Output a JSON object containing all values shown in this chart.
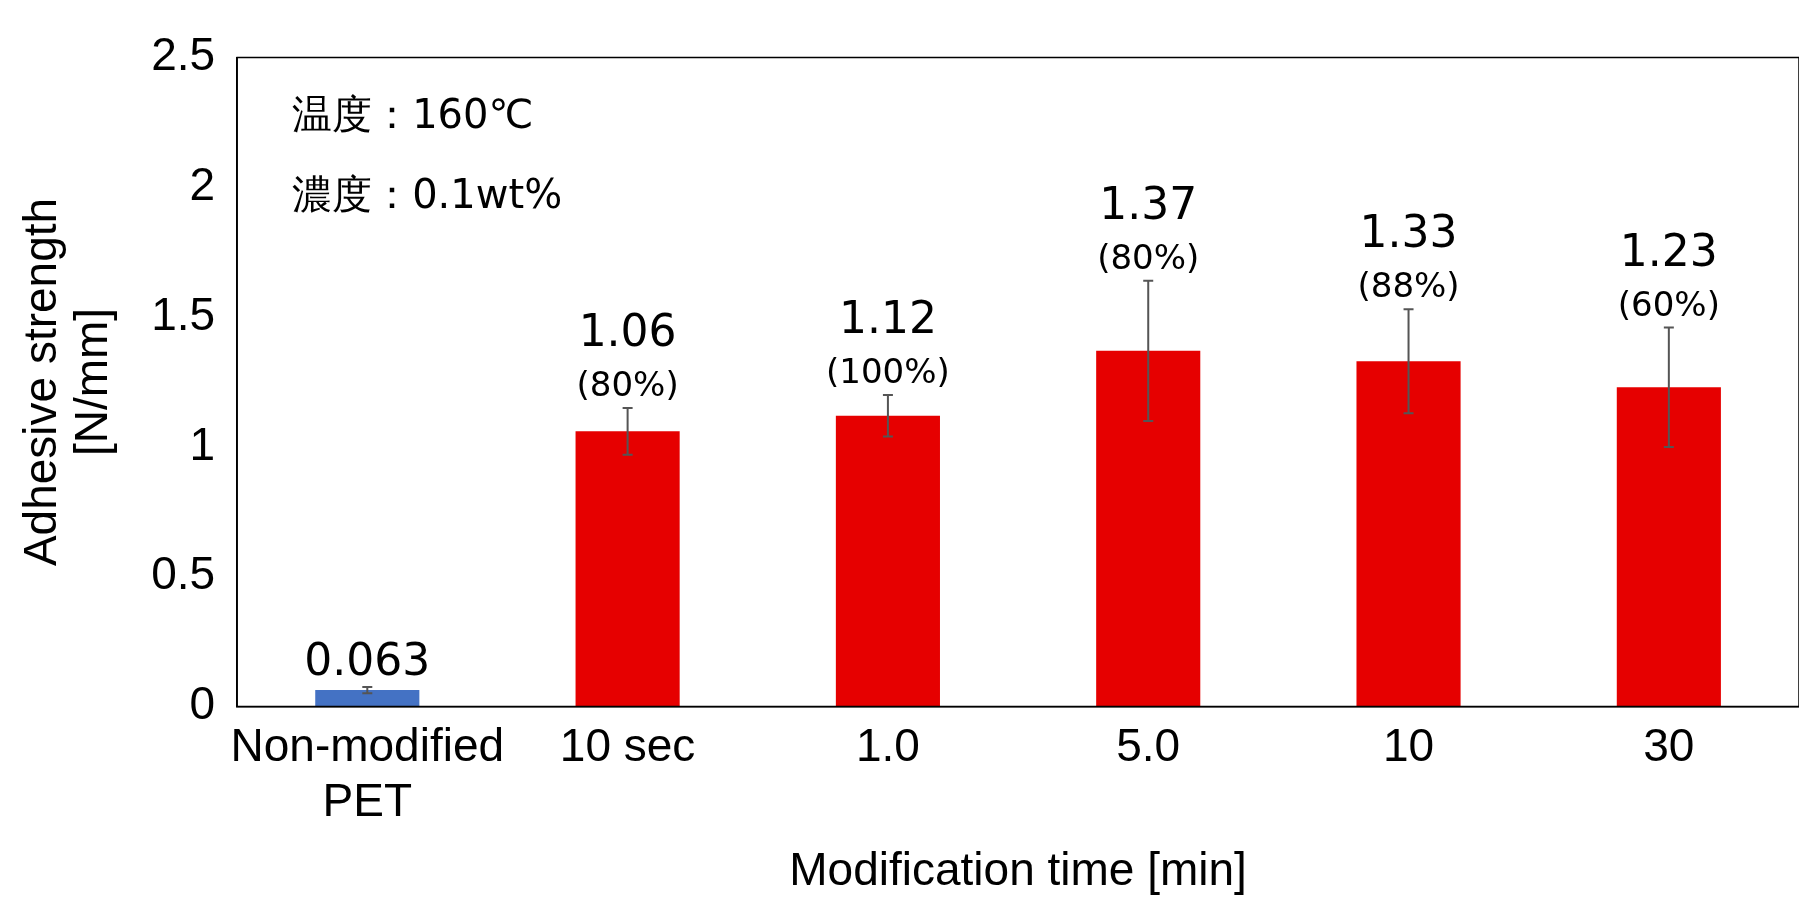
{
  "chart_data": {
    "type": "bar",
    "xlabel": "Modification time [min]",
    "ylabel": "Adhesive strength\n[N/mm]",
    "categories": [
      "Non-modified\nPET",
      "10 sec",
      "1.0",
      "5.0",
      "10",
      "30"
    ],
    "values": [
      0.063,
      1.06,
      1.12,
      1.37,
      1.33,
      1.23
    ],
    "colors": [
      "#4472c4",
      "#e60000",
      "#e60000",
      "#e60000",
      "#e60000",
      "#e60000"
    ],
    "errors": [
      0.012,
      0.09,
      0.08,
      0.27,
      0.2,
      0.23
    ],
    "value_labels": [
      "0.063",
      "1.06\n(80%)",
      "1.12\n(100%)",
      "1.37\n(80%)",
      "1.33\n(88%)",
      "1.23\n(60%)"
    ],
    "ylim": [
      0,
      2.5
    ],
    "yticks": [
      0,
      0.5,
      1,
      1.5,
      2,
      2.5
    ],
    "grid": false,
    "legend": false,
    "annotations": [
      "温度：160℃",
      "濃度：0.1wt%"
    ]
  }
}
